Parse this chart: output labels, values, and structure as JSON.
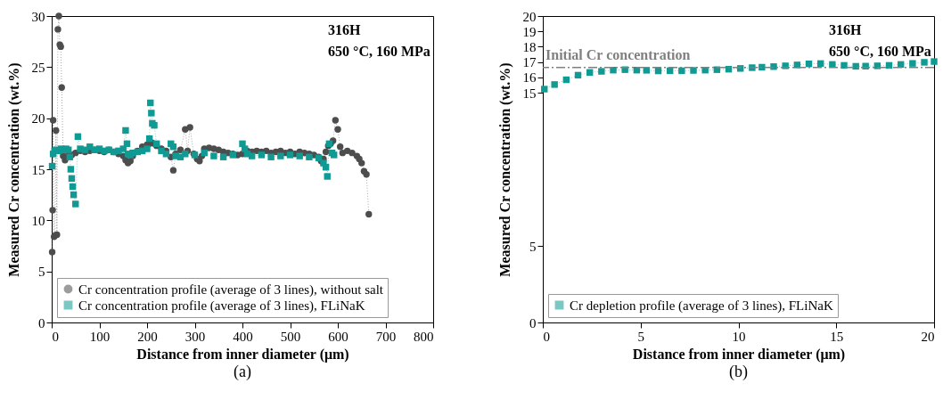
{
  "chart_data": [
    {
      "type": "line",
      "line_style": "dotted",
      "xlabel": "Distance from inner diameter (μm)",
      "ylabel": "Measured Cr concentration (wt.%)",
      "xlim": [
        0,
        800
      ],
      "xticks": [
        0,
        100,
        200,
        300,
        400,
        500,
        600,
        700,
        800
      ],
      "ylim": [
        0,
        30
      ],
      "yticks": [
        0,
        5,
        10,
        15,
        20,
        25,
        30
      ],
      "legend": "bottom left",
      "annotations": [
        "316H",
        "650 °C, 160 MPa",
        "(a)"
      ],
      "series": [
        {
          "name": "Cr concentration profile (average of 3 lines), without salt",
          "color": "#4d4d4d",
          "marker": "circle",
          "x": [
            1,
            2,
            3,
            5,
            7,
            9,
            11,
            13,
            15,
            17,
            19,
            21,
            24,
            28,
            32,
            36,
            42,
            50,
            60,
            70,
            80,
            90,
            100,
            110,
            120,
            130,
            140,
            150,
            155,
            160,
            165,
            170,
            180,
            190,
            200,
            205,
            210,
            215,
            220,
            230,
            240,
            250,
            255,
            260,
            270,
            280,
            285,
            290,
            298,
            305,
            310,
            315,
            320,
            330,
            340,
            350,
            360,
            370,
            380,
            390,
            400,
            410,
            420,
            430,
            440,
            450,
            460,
            470,
            480,
            490,
            500,
            510,
            520,
            530,
            540,
            550,
            560,
            565,
            570,
            575,
            580,
            585,
            590,
            595,
            600,
            605,
            610,
            620,
            630,
            640,
            645,
            650,
            655,
            660,
            665
          ],
          "values": [
            6.9,
            11,
            19.8,
            8.4,
            8.5,
            18.8,
            8.6,
            28.7,
            30,
            27.2,
            27,
            23,
            16.3,
            15.9,
            16.2,
            16.5,
            16.4,
            16.6,
            16.8,
            16.7,
            16.8,
            16.9,
            16.8,
            16.7,
            16.9,
            16.7,
            16.5,
            16.3,
            15.9,
            15.6,
            15.8,
            16.3,
            16.8,
            17.2,
            17.4,
            17.5,
            17.6,
            17.5,
            17.3,
            17.0,
            16.8,
            16.2,
            14.9,
            16.5,
            16.9,
            18.9,
            16.8,
            19.1,
            16.5,
            16.0,
            15.8,
            16.3,
            17.0,
            17.1,
            17.0,
            16.9,
            16.7,
            16.6,
            16.5,
            16.4,
            16.5,
            16.8,
            16.7,
            16.8,
            16.7,
            16.8,
            16.6,
            16.7,
            16.8,
            16.6,
            16.7,
            16.5,
            16.7,
            16.6,
            16.5,
            16.4,
            16.2,
            15.8,
            16.0,
            16.7,
            17.3,
            17.5,
            17.8,
            19.8,
            18.9,
            17.2,
            16.6,
            16.8,
            16.6,
            16.3,
            16.0,
            15.6,
            14.8,
            14.5,
            10.6
          ]
        },
        {
          "name": "Cr concentration profile (average of 3 lines), FLiNaK",
          "color": "#109a94",
          "marker": "square",
          "x": [
            1,
            3,
            6,
            10,
            15,
            20,
            25,
            30,
            35,
            38,
            40,
            42,
            44,
            46,
            50,
            55,
            60,
            70,
            80,
            90,
            100,
            110,
            120,
            130,
            140,
            150,
            155,
            158,
            160,
            165,
            170,
            180,
            190,
            200,
            205,
            207,
            209,
            211,
            215,
            220,
            230,
            240,
            250,
            255,
            260,
            270,
            280,
            300,
            320,
            340,
            360,
            380,
            400,
            405,
            410,
            420,
            440,
            460,
            480,
            500,
            520,
            540,
            560,
            570,
            575,
            578,
            582,
            588,
            592
          ],
          "values": [
            15.3,
            16.5,
            16.8,
            16.9,
            16.8,
            17.0,
            16.9,
            17.0,
            16.9,
            16.2,
            15.0,
            14.1,
            13.3,
            12.5,
            11.6,
            18.2,
            17.0,
            16.9,
            17.2,
            16.9,
            17.0,
            16.8,
            16.9,
            16.7,
            16.8,
            17.0,
            18.8,
            17.5,
            16.5,
            16.4,
            16.6,
            16.7,
            16.8,
            17.0,
            18.0,
            21.5,
            20.5,
            19.5,
            19.3,
            17.5,
            16.8,
            16.5,
            17.5,
            17.2,
            16.3,
            16.2,
            16.5,
            16.4,
            16.6,
            16.3,
            16.2,
            16.4,
            17.5,
            17.0,
            16.5,
            16.3,
            16.4,
            16.2,
            16.3,
            16.4,
            16.3,
            16.2,
            16.1,
            15.6,
            15.2,
            14.3,
            17.5,
            16.6,
            16.4
          ]
        }
      ]
    },
    {
      "type": "line",
      "line_style": "dotted",
      "xlabel": "Distance from inner diameter (μm)",
      "ylabel": "Measured Cr concentration (wt.%)",
      "xlim": [
        0,
        20
      ],
      "xticks": [
        0,
        5,
        10,
        15,
        20
      ],
      "ylim": [
        0,
        20
      ],
      "yticks": [
        0,
        5,
        15,
        16,
        17,
        18,
        19,
        20
      ],
      "legend": "bottom left",
      "annotations": [
        "316H",
        "650 °C, 160 MPa",
        "(b)"
      ],
      "ref_lines": [
        {
          "axis": "y",
          "value": 16.64,
          "label": "Initial Cr concentration",
          "color": "#808080"
        }
      ],
      "series": [
        {
          "name": "Cr depletion profile (average of 3 lines), FLiNaK",
          "color": "#109a94",
          "marker": "square",
          "x": [
            0.08,
            0.6,
            1.2,
            1.8,
            2.4,
            3.0,
            3.6,
            4.2,
            4.8,
            5.3,
            5.9,
            6.5,
            7.1,
            7.7,
            8.3,
            8.9,
            9.5,
            10.1,
            10.7,
            11.2,
            11.8,
            12.4,
            13.0,
            13.6,
            14.2,
            14.8,
            15.4,
            16.0,
            16.5,
            17.1,
            17.7,
            18.3,
            18.9,
            19.5,
            20
          ],
          "values": [
            15.23,
            15.53,
            15.84,
            16.14,
            16.32,
            16.39,
            16.47,
            16.5,
            16.47,
            16.46,
            16.42,
            16.43,
            16.43,
            16.45,
            16.47,
            16.5,
            16.53,
            16.58,
            16.63,
            16.66,
            16.7,
            16.75,
            16.81,
            16.88,
            16.9,
            16.84,
            16.78,
            16.72,
            16.73,
            16.75,
            16.78,
            16.84,
            16.91,
            16.98,
            17.03
          ]
        }
      ]
    }
  ]
}
